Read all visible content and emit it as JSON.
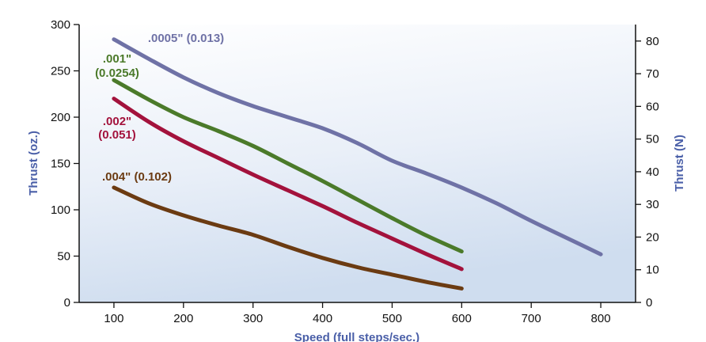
{
  "chart_data": {
    "type": "line",
    "title": "",
    "xlabel": "Speed (full steps/sec.)",
    "ylabel": "Thrust (oz.)",
    "ylabel_right": "Thrust (N)",
    "xlim": [
      50,
      850
    ],
    "ylim": [
      0,
      300
    ],
    "ylim_right": [
      0,
      85.05
    ],
    "xticks": [
      100,
      200,
      300,
      400,
      500,
      600,
      700,
      800
    ],
    "yticks": [
      0,
      50,
      100,
      150,
      200,
      250,
      300
    ],
    "yticks_right": [
      0,
      10,
      20,
      30,
      40,
      50,
      60,
      70,
      80
    ],
    "grid": false,
    "background": "light blue gradient",
    "series": [
      {
        "name": ".0005\" (0.013)",
        "label_lines": [
          ".0005\" (0.013)"
        ],
        "color": "#6f72a6",
        "x": [
          100,
          150,
          200,
          250,
          300,
          350,
          400,
          450,
          500,
          550,
          600,
          650,
          700,
          750,
          800
        ],
        "y": [
          284,
          263,
          243,
          226,
          212,
          200,
          188,
          172,
          153,
          139,
          124,
          107,
          88,
          70,
          52
        ]
      },
      {
        "name": ".001\" (0.0254)",
        "label_lines": [
          ".001\"",
          "(0.0254)"
        ],
        "color": "#4b7a2a",
        "x": [
          100,
          150,
          200,
          250,
          300,
          350,
          400,
          450,
          500,
          550,
          600
        ],
        "y": [
          240,
          219,
          200,
          185,
          169,
          150,
          131,
          111,
          91,
          72,
          55
        ]
      },
      {
        "name": ".002\" (0.051)",
        "label_lines": [
          ".002\"",
          "(0.051)"
        ],
        "color": "#a3123c",
        "x": [
          100,
          150,
          200,
          250,
          300,
          350,
          400,
          450,
          500,
          550,
          600
        ],
        "y": [
          220,
          195,
          174,
          156,
          138,
          121,
          104,
          86,
          69,
          52,
          36
        ]
      },
      {
        "name": ".004\" (0.102)",
        "label_lines": [
          ".004\" (0.102)"
        ],
        "color": "#6b3b12",
        "x": [
          100,
          150,
          200,
          250,
          300,
          350,
          400,
          450,
          500,
          550,
          600
        ],
        "y": [
          124,
          107,
          94,
          83,
          73,
          60,
          48,
          38,
          30,
          22,
          15
        ]
      }
    ]
  }
}
